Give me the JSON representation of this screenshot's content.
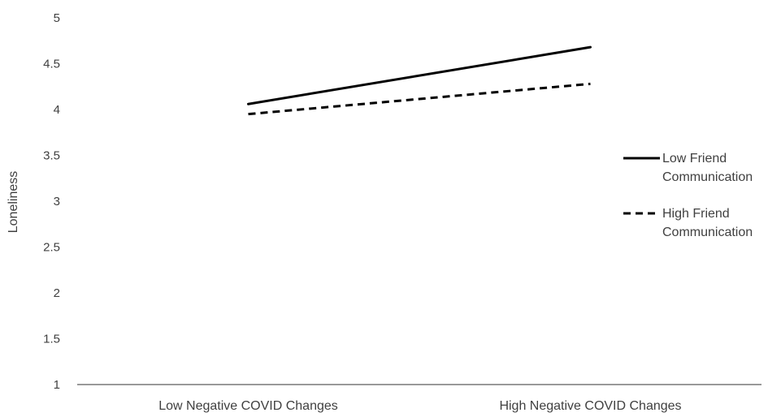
{
  "chart_data": {
    "type": "line",
    "title": "",
    "xlabel": "",
    "ylabel": "Loneliness",
    "categories": [
      "Low Negative COVID Changes",
      "High Negative COVID Changes"
    ],
    "ylim": [
      1,
      5
    ],
    "yticks": [
      "1",
      "1.5",
      "2",
      "2.5",
      "3",
      "3.5",
      "4",
      "4.5",
      "5"
    ],
    "grid": false,
    "legend_position": "right",
    "series": [
      {
        "name_lines": [
          "Low Friend",
          "Communication"
        ],
        "style": "solid",
        "color": "#000000",
        "values": [
          4.06,
          4.68
        ]
      },
      {
        "name_lines": [
          "High Friend",
          "Communication"
        ],
        "style": "dashed",
        "color": "#000000",
        "values": [
          3.95,
          4.28
        ]
      }
    ]
  }
}
